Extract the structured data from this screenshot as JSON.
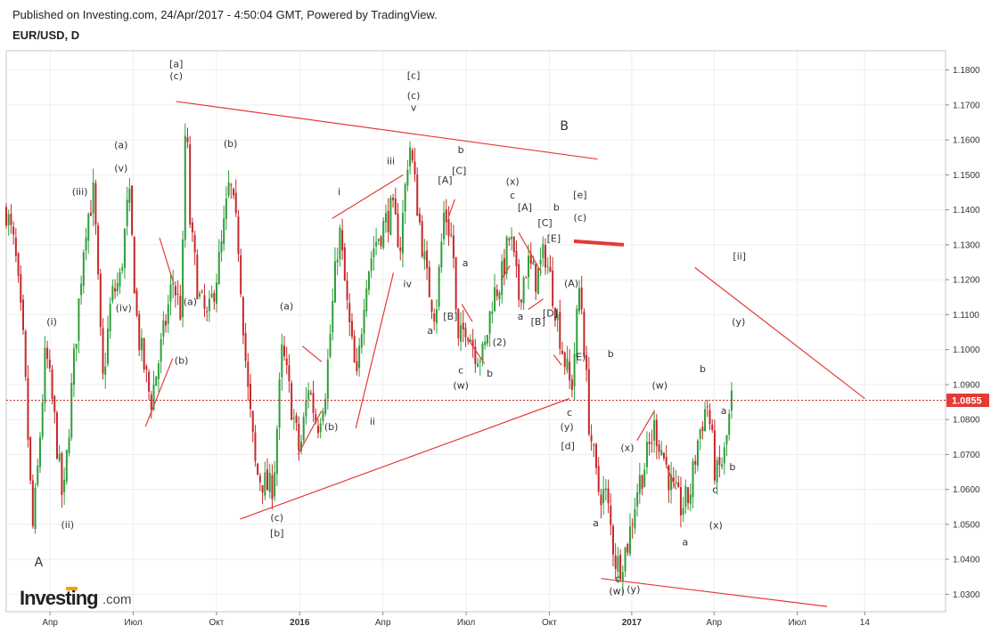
{
  "header": {
    "published": "Published on Investing.com, 24/Apr/2017 - 4:50:04 GMT, Powered by TradingView.",
    "symbol": "EUR/USD, D"
  },
  "logo": {
    "main": "Investing",
    "suffix": ".com"
  },
  "colors": {
    "bull": "#2e9e3a",
    "bear": "#c62828",
    "trend": "#e53935",
    "price_line": "#c62828",
    "price_badge": "#e53935",
    "grid": "#eeeeee",
    "axis": "#888888"
  },
  "chart_data": {
    "type": "candlestick",
    "instrument": "EUR/USD",
    "timeframe": "D",
    "ylim": [
      1.025,
      1.1855
    ],
    "y_ticks": [
      "1.0300",
      "1.0400",
      "1.0500",
      "1.0600",
      "1.0700",
      "1.0800",
      "1.0900",
      "1.1000",
      "1.1100",
      "1.1200",
      "1.1300",
      "1.1400",
      "1.1500",
      "1.1600",
      "1.1700",
      "1.1800"
    ],
    "x_ticks": [
      {
        "label": "Апр",
        "t": 0.05
      },
      {
        "label": "Июл",
        "t": 0.145
      },
      {
        "label": "Окт",
        "t": 0.24
      },
      {
        "label": "2016",
        "t": 0.335,
        "bold": true
      },
      {
        "label": "Апр",
        "t": 0.43
      },
      {
        "label": "Июл",
        "t": 0.525
      },
      {
        "label": "Окт",
        "t": 0.62
      },
      {
        "label": "2017",
        "t": 0.714,
        "bold": true
      },
      {
        "label": "Апр",
        "t": 0.808
      },
      {
        "label": "Июл",
        "t": 0.903
      },
      {
        "label": "14",
        "t": 0.98
      }
    ],
    "last_price": 1.0855,
    "last_price_label": "1.0855",
    "price_path": [
      [
        0.0,
        1.14
      ],
      [
        0.01,
        1.128
      ],
      [
        0.02,
        1.1
      ],
      [
        0.03,
        1.048
      ],
      [
        0.035,
        1.062
      ],
      [
        0.045,
        1.1
      ],
      [
        0.055,
        1.08
      ],
      [
        0.065,
        1.055
      ],
      [
        0.075,
        1.09
      ],
      [
        0.09,
        1.135
      ],
      [
        0.1,
        1.145
      ],
      [
        0.11,
        1.09
      ],
      [
        0.12,
        1.115
      ],
      [
        0.13,
        1.12
      ],
      [
        0.14,
        1.145
      ],
      [
        0.15,
        1.105
      ],
      [
        0.165,
        1.085
      ],
      [
        0.18,
        1.105
      ],
      [
        0.19,
        1.12
      ],
      [
        0.2,
        1.11
      ],
      [
        0.205,
        1.17
      ],
      [
        0.21,
        1.135
      ],
      [
        0.22,
        1.115
      ],
      [
        0.23,
        1.108
      ],
      [
        0.245,
        1.128
      ],
      [
        0.255,
        1.148
      ],
      [
        0.265,
        1.13
      ],
      [
        0.275,
        1.09
      ],
      [
        0.285,
        1.065
      ],
      [
        0.3,
        1.06
      ],
      [
        0.305,
        1.062
      ],
      [
        0.315,
        1.1
      ],
      [
        0.325,
        1.085
      ],
      [
        0.335,
        1.07
      ],
      [
        0.345,
        1.09
      ],
      [
        0.355,
        1.078
      ],
      [
        0.365,
        1.09
      ],
      [
        0.375,
        1.12
      ],
      [
        0.38,
        1.135
      ],
      [
        0.39,
        1.11
      ],
      [
        0.4,
        1.09
      ],
      [
        0.41,
        1.12
      ],
      [
        0.42,
        1.13
      ],
      [
        0.43,
        1.135
      ],
      [
        0.44,
        1.14
      ],
      [
        0.45,
        1.13
      ],
      [
        0.46,
        1.16
      ],
      [
        0.47,
        1.14
      ],
      [
        0.48,
        1.12
      ],
      [
        0.49,
        1.11
      ],
      [
        0.5,
        1.14
      ],
      [
        0.51,
        1.13
      ],
      [
        0.515,
        1.1
      ],
      [
        0.525,
        1.108
      ],
      [
        0.535,
        1.1
      ],
      [
        0.545,
        1.098
      ],
      [
        0.555,
        1.115
      ],
      [
        0.565,
        1.12
      ],
      [
        0.575,
        1.133
      ],
      [
        0.585,
        1.115
      ],
      [
        0.595,
        1.125
      ],
      [
        0.605,
        1.12
      ],
      [
        0.615,
        1.128
      ],
      [
        0.625,
        1.115
      ],
      [
        0.635,
        1.1
      ],
      [
        0.645,
        1.088
      ],
      [
        0.655,
        1.12
      ],
      [
        0.66,
        1.1
      ],
      [
        0.665,
        1.08
      ],
      [
        0.675,
        1.06
      ],
      [
        0.685,
        1.058
      ],
      [
        0.695,
        1.04
      ],
      [
        0.7,
        1.038
      ],
      [
        0.71,
        1.045
      ],
      [
        0.72,
        1.06
      ],
      [
        0.73,
        1.068
      ],
      [
        0.74,
        1.078
      ],
      [
        0.75,
        1.07
      ],
      [
        0.76,
        1.06
      ],
      [
        0.77,
        1.055
      ],
      [
        0.78,
        1.058
      ],
      [
        0.79,
        1.075
      ],
      [
        0.8,
        1.085
      ],
      [
        0.805,
        1.075
      ],
      [
        0.81,
        1.063
      ],
      [
        0.82,
        1.07
      ],
      [
        0.828,
        1.0855
      ]
    ],
    "wave_labels": [
      {
        "text": "[a]",
        "t": 0.194,
        "v": 1.1808
      },
      {
        "text": "(c)",
        "t": 0.194,
        "v": 1.1773
      },
      {
        "text": "[c]",
        "t": 0.465,
        "v": 1.1775
      },
      {
        "text": "(c)",
        "t": 0.465,
        "v": 1.1718
      },
      {
        "text": "v",
        "t": 0.465,
        "v": 1.1683
      },
      {
        "text": "B",
        "t": 0.637,
        "v": 1.1628,
        "big": true
      },
      {
        "text": "(a)",
        "t": 0.131,
        "v": 1.1576
      },
      {
        "text": "(b)",
        "t": 0.256,
        "v": 1.158
      },
      {
        "text": "b",
        "t": 0.519,
        "v": 1.1562
      },
      {
        "text": "(v)",
        "t": 0.131,
        "v": 1.151
      },
      {
        "text": "iii",
        "t": 0.439,
        "v": 1.153
      },
      {
        "text": "[C]",
        "t": 0.517,
        "v": 1.1502
      },
      {
        "text": "[A]",
        "t": 0.501,
        "v": 1.1475
      },
      {
        "text": "(x)",
        "t": 0.578,
        "v": 1.1472
      },
      {
        "text": "(iii)",
        "t": 0.084,
        "v": 1.1442
      },
      {
        "text": "i",
        "t": 0.38,
        "v": 1.1442
      },
      {
        "text": "c",
        "t": 0.578,
        "v": 1.1432
      },
      {
        "text": "[e]",
        "t": 0.655,
        "v": 1.1433
      },
      {
        "text": "[A]",
        "t": 0.592,
        "v": 1.1398
      },
      {
        "text": "b",
        "t": 0.628,
        "v": 1.1398
      },
      {
        "text": "(c)",
        "t": 0.655,
        "v": 1.1368
      },
      {
        "text": "[C]",
        "t": 0.615,
        "v": 1.1353
      },
      {
        "text": "[E]",
        "t": 0.625,
        "v": 1.1308
      },
      {
        "text": "[ii]",
        "t": 0.837,
        "v": 1.1258
      },
      {
        "text": "a",
        "t": 0.524,
        "v": 1.1238
      },
      {
        "text": "iv",
        "t": 0.458,
        "v": 1.1178
      },
      {
        "text": "(A)",
        "t": 0.645,
        "v": 1.118
      },
      {
        "text": "(a)",
        "t": 0.21,
        "v": 1.1128
      },
      {
        "text": "(a)",
        "t": 0.32,
        "v": 1.1115
      },
      {
        "text": "(iv)",
        "t": 0.134,
        "v": 1.111
      },
      {
        "text": "[D]",
        "t": 0.621,
        "v": 1.1095
      },
      {
        "text": "[B]",
        "t": 0.507,
        "v": 1.1085
      },
      {
        "text": "a",
        "t": 0.587,
        "v": 1.1085
      },
      {
        "text": "[B]",
        "t": 0.607,
        "v": 1.107
      },
      {
        "text": "(i)",
        "t": 0.052,
        "v": 1.107
      },
      {
        "text": "(y)",
        "t": 0.836,
        "v": 1.107
      },
      {
        "text": "a",
        "t": 0.484,
        "v": 1.1045
      },
      {
        "text": "(2)",
        "t": 0.563,
        "v": 1.1012
      },
      {
        "text": "b",
        "t": 0.69,
        "v": 1.0978
      },
      {
        "text": "E)",
        "t": 0.656,
        "v": 1.097
      },
      {
        "text": "(b)",
        "t": 0.2,
        "v": 1.096
      },
      {
        "text": "b",
        "t": 0.795,
        "v": 1.0935
      },
      {
        "text": "c",
        "t": 0.519,
        "v": 1.0932
      },
      {
        "text": "b",
        "t": 0.552,
        "v": 1.0922
      },
      {
        "text": "(w)",
        "t": 0.519,
        "v": 1.0888
      },
      {
        "text": "(w)",
        "t": 0.746,
        "v": 1.0888
      },
      {
        "text": "c",
        "t": 0.643,
        "v": 1.081
      },
      {
        "text": "a",
        "t": 0.819,
        "v": 1.0815
      },
      {
        "text": "ii",
        "t": 0.418,
        "v": 1.0785
      },
      {
        "text": "(y)",
        "t": 0.64,
        "v": 1.077
      },
      {
        "text": "(b)",
        "t": 0.371,
        "v": 1.077
      },
      {
        "text": "[d]",
        "t": 0.641,
        "v": 1.0715
      },
      {
        "text": "(x)",
        "t": 0.709,
        "v": 1.071
      },
      {
        "text": "b",
        "t": 0.829,
        "v": 1.0655
      },
      {
        "text": "c",
        "t": 0.809,
        "v": 1.059
      },
      {
        "text": "(c)",
        "t": 0.309,
        "v": 1.051
      },
      {
        "text": "(ii)",
        "t": 0.07,
        "v": 1.049
      },
      {
        "text": "a",
        "t": 0.673,
        "v": 1.0495
      },
      {
        "text": "(x)",
        "t": 0.81,
        "v": 1.0488
      },
      {
        "text": "[b]",
        "t": 0.309,
        "v": 1.0465
      },
      {
        "text": "a",
        "t": 0.775,
        "v": 1.044
      },
      {
        "text": "A",
        "t": 0.037,
        "v": 1.038,
        "big": true
      },
      {
        "text": "c",
        "t": 0.698,
        "v": 1.0335
      },
      {
        "text": "(w)",
        "t": 0.697,
        "v": 1.03
      },
      {
        "text": "(y)",
        "t": 0.716,
        "v": 1.0305
      }
    ],
    "trend_lines": [
      [
        0.194,
        1.171,
        0.675,
        1.1545
      ],
      [
        0.267,
        1.0515,
        0.643,
        1.086
      ],
      [
        0.679,
        1.0345,
        0.937,
        1.0265
      ],
      [
        0.786,
        1.1235,
        0.98,
        1.086
      ],
      [
        0.372,
        1.1375,
        0.453,
        1.15
      ],
      [
        0.399,
        1.0775,
        0.442,
        1.122
      ],
      [
        0.159,
        1.078,
        0.19,
        1.0975
      ],
      [
        0.333,
        1.07,
        0.36,
        1.0825
      ],
      [
        0.175,
        1.132,
        0.191,
        1.119
      ],
      [
        0.338,
        1.101,
        0.36,
        1.0965
      ],
      [
        0.505,
        1.138,
        0.512,
        1.143
      ],
      [
        0.52,
        1.113,
        0.532,
        1.108
      ],
      [
        0.527,
        1.103,
        0.546,
        1.096
      ],
      [
        0.565,
        1.12,
        0.575,
        1.124
      ],
      [
        0.585,
        1.1335,
        0.611,
        1.122
      ],
      [
        0.596,
        1.1115,
        0.613,
        1.1145
      ],
      [
        0.625,
        1.0985,
        0.634,
        1.0955
      ],
      [
        0.72,
        1.074,
        0.74,
        1.0825
      ],
      [
        0.754,
        1.0665,
        0.765,
        1.06
      ]
    ],
    "target_line": [
      0.648,
      1.131,
      0.705,
      1.13
    ]
  }
}
